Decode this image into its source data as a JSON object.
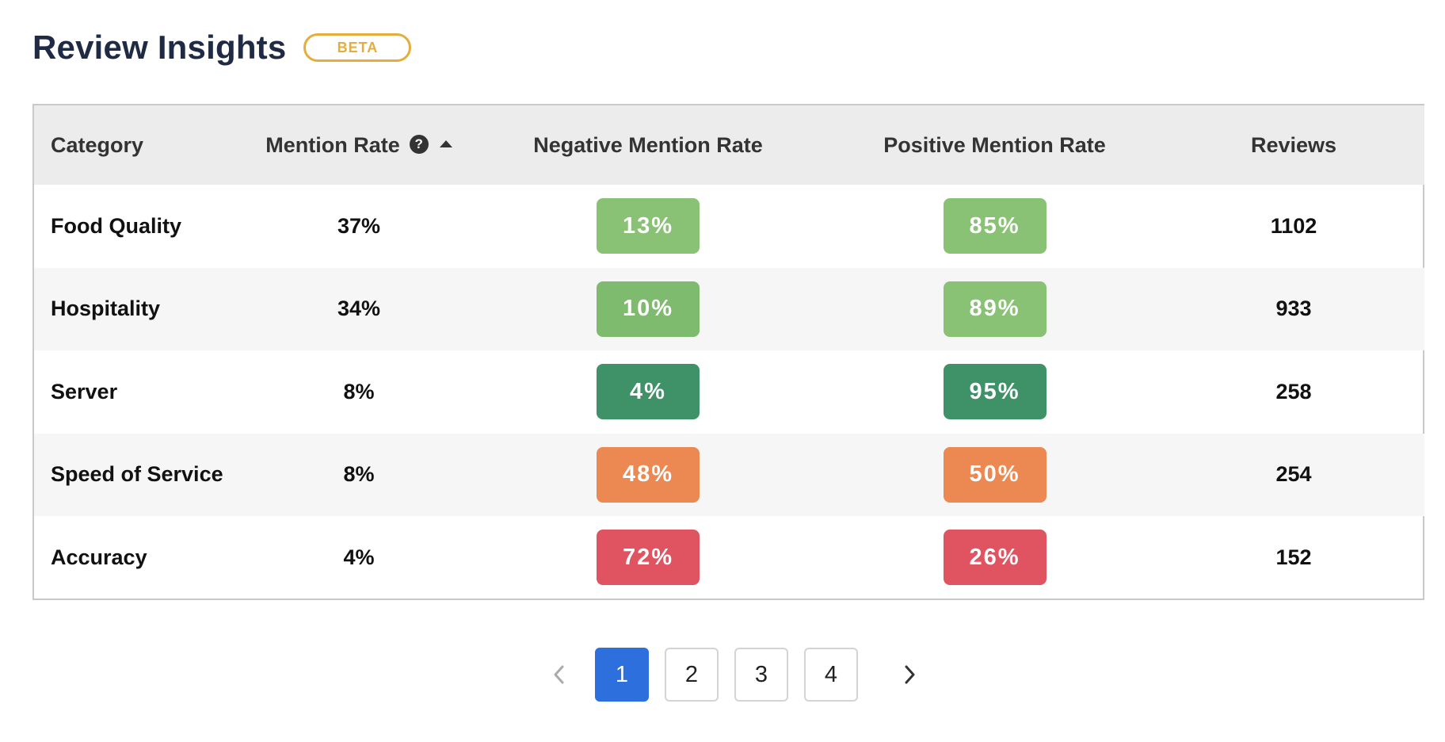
{
  "header": {
    "title": "Review Insights",
    "badge": "BETA"
  },
  "table": {
    "columns": {
      "category": "Category",
      "mention_rate": "Mention Rate",
      "negative": "Negative Mention Rate",
      "positive": "Positive Mention Rate",
      "reviews": "Reviews"
    },
    "help_icon": "question-circle-icon",
    "sort_icon": "sort-ascending-icon",
    "rows": [
      {
        "category": "Food Quality",
        "mention_rate": "37%",
        "negative": "13%",
        "negative_color": "#8ac275",
        "positive": "85%",
        "positive_color": "#8ac275",
        "reviews": "1102"
      },
      {
        "category": "Hospitality",
        "mention_rate": "34%",
        "negative": "10%",
        "negative_color": "#7fbb6f",
        "positive": "89%",
        "positive_color": "#8ac275",
        "reviews": "933"
      },
      {
        "category": "Server",
        "mention_rate": "8%",
        "negative": "4%",
        "negative_color": "#3f9168",
        "positive": "95%",
        "positive_color": "#3f9168",
        "reviews": "258"
      },
      {
        "category": "Speed of Service",
        "mention_rate": "8%",
        "negative": "48%",
        "negative_color": "#ec8952",
        "positive": "50%",
        "positive_color": "#ec8952",
        "reviews": "254"
      },
      {
        "category": "Accuracy",
        "mention_rate": "4%",
        "negative": "72%",
        "negative_color": "#e05462",
        "positive": "26%",
        "positive_color": "#e05462",
        "reviews": "152"
      }
    ]
  },
  "pagination": {
    "prev_icon": "chevron-left-icon",
    "next_icon": "chevron-right-icon",
    "pages": [
      "1",
      "2",
      "3",
      "4"
    ],
    "current": "1"
  }
}
